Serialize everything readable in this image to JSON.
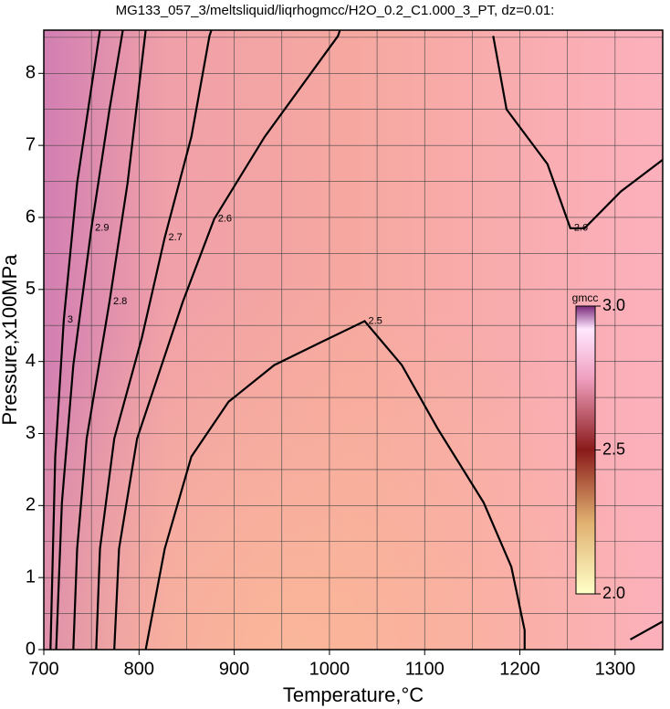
{
  "chart_data": {
    "type": "contour",
    "title": "MG133_057_3/meltsliquid/liqrhogmcc/H2O_0.2_C1.000_3_PT, dz=0.01:",
    "x_label": "Temperature,°C",
    "y_label": "Pressure,x100MPa",
    "xlim": [
      700,
      1350
    ],
    "ylim": [
      0,
      8.6
    ],
    "xticks": [
      700,
      800,
      900,
      1000,
      1100,
      1200,
      1300
    ],
    "yticks": [
      0,
      1,
      2,
      3,
      4,
      5,
      6,
      7,
      8
    ],
    "xgrid": [
      750,
      800,
      850,
      900,
      950,
      1000,
      1050,
      1100,
      1150,
      1200,
      1250,
      1300
    ],
    "ygrid": [
      0.5,
      1,
      1.5,
      2,
      2.5,
      3,
      3.5,
      4,
      4.5,
      5,
      5.5,
      6,
      6.5,
      7,
      7.5,
      8,
      8.5
    ],
    "grid": true,
    "series": [
      {
        "name": "2.5",
        "color": "#000000",
        "x": [
          807,
          827,
          855,
          894,
          942,
          990,
          1037,
          1076,
          1114,
          1162,
          1191,
          1205,
          1205
        ],
        "values": [
          0,
          1.4,
          2.68,
          3.44,
          3.95,
          4.26,
          4.56,
          3.95,
          3.06,
          2.04,
          1.15,
          0.27,
          0
        ]
      },
      {
        "name": "2.5",
        "color": "#000000",
        "x": [
          1316,
          1350
        ],
        "values": [
          0.14,
          0.39
        ]
      },
      {
        "name": "2.6",
        "color": "#000000",
        "x": [
          774,
          779,
          798,
          846,
          879,
          932,
          1009,
          1011
        ],
        "values": [
          0,
          1.4,
          2.93,
          4.83,
          5.98,
          7.12,
          8.52,
          8.6
        ]
      },
      {
        "name": "2.6",
        "color": "#000000",
        "x": [
          1172,
          1186,
          1229,
          1253,
          1268,
          1306,
          1350
        ],
        "values": [
          8.52,
          7.5,
          6.74,
          5.85,
          5.85,
          6.36,
          6.8
        ]
      },
      {
        "name": "2.7",
        "color": "#000000",
        "x": [
          755,
          759,
          774,
          803,
          827,
          855,
          874,
          876
        ],
        "values": [
          0,
          1.4,
          2.93,
          4.33,
          5.72,
          7.12,
          8.52,
          8.6
        ]
      },
      {
        "name": "2.8",
        "color": "#000000",
        "x": [
          731,
          735,
          745,
          769,
          788,
          807
        ],
        "values": [
          0,
          1.4,
          2.93,
          4.83,
          6.48,
          8.6
        ]
      },
      {
        "name": "2.9",
        "color": "#000000",
        "x": [
          713,
          719,
          731,
          750,
          769,
          783
        ],
        "values": [
          0,
          2.04,
          3.95,
          5.85,
          7.5,
          8.6
        ]
      },
      {
        "name": "3",
        "color": "#000000",
        "x": [
          707,
          712,
          721,
          735,
          759
        ],
        "values": [
          0,
          2.68,
          4.58,
          6.48,
          8.6
        ]
      }
    ],
    "colorbar": {
      "label": "gmcc",
      "lim": [
        2,
        3
      ],
      "ticks": [
        {
          "value": 2,
          "label": "2.0"
        },
        2.5,
        {
          "value": 3,
          "label": "3.0"
        }
      ]
    }
  }
}
